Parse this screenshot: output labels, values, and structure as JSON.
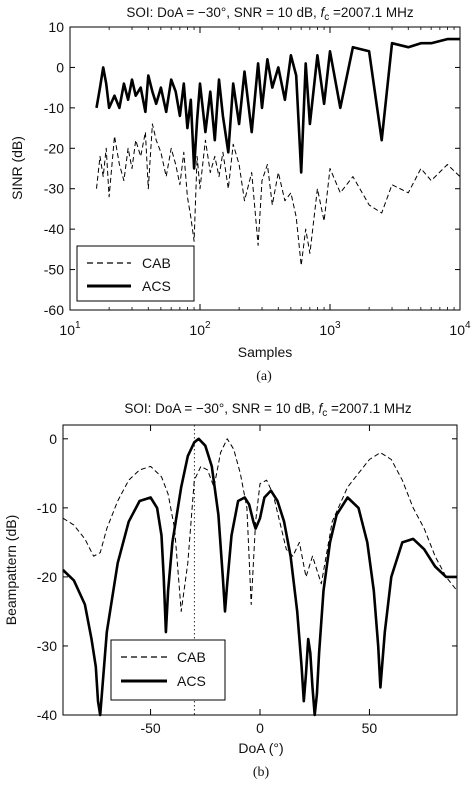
{
  "chart_data": [
    {
      "type": "line",
      "title_prefix": "SOI: DoA = −30°, SNR = 10 dB, ",
      "title_var": "f",
      "title_sub": "c",
      "title_suffix": " =2007.1 MHz",
      "xlabel": "Samples",
      "ylabel": "SINR (dB)",
      "caption": "(a)",
      "xscale": "log",
      "xlim": [
        10,
        10000
      ],
      "ylim": [
        -60,
        10
      ],
      "xtick_values": [
        10,
        100,
        1000,
        10000
      ],
      "xtick_bases": [
        "10",
        "10",
        "10",
        "10"
      ],
      "xtick_exps": [
        "1",
        "2",
        "3",
        "4"
      ],
      "ytick_labels": [
        "10",
        "0",
        "-10",
        "-20",
        "-30",
        "-40",
        "-50",
        "-60"
      ],
      "ytick_values": [
        10,
        0,
        -10,
        -20,
        -30,
        -40,
        -50,
        -60
      ],
      "grid": false,
      "legend_position": "bottom-left",
      "series": [
        {
          "name": "CAB",
          "style": "dashed",
          "x": [
            16,
            17,
            18,
            19,
            20,
            22,
            24,
            26,
            28,
            30,
            32,
            35,
            38,
            40,
            43,
            46,
            50,
            55,
            60,
            65,
            70,
            75,
            80,
            85,
            90,
            95,
            100,
            110,
            120,
            130,
            140,
            150,
            165,
            180,
            200,
            220,
            250,
            280,
            300,
            330,
            360,
            400,
            450,
            500,
            550,
            600,
            650,
            700,
            800,
            900,
            1000,
            1200,
            1500,
            2000,
            2500,
            3000,
            4000,
            5000,
            6000,
            8000,
            10000
          ],
          "y": [
            -30,
            -22,
            -27,
            -20,
            -32,
            -17,
            -24,
            -28,
            -20,
            -25,
            -18,
            -22,
            -16,
            -30,
            -14,
            -18,
            -21,
            -27,
            -20,
            -24,
            -29,
            -21,
            -32,
            -37,
            -43,
            -22,
            -30,
            -18,
            -26,
            -22,
            -27,
            -21,
            -30,
            -19,
            -24,
            -33,
            -26,
            -44,
            -28,
            -24,
            -34,
            -26,
            -33,
            -31,
            -37,
            -49,
            -40,
            -46,
            -30,
            -38,
            -25,
            -31,
            -27,
            -34,
            -36,
            -29,
            -31,
            -25,
            -28,
            -24,
            -27
          ]
        },
        {
          "name": "ACS",
          "style": "solid",
          "x": [
            16,
            17,
            18,
            19,
            20,
            22,
            24,
            26,
            28,
            30,
            32,
            35,
            38,
            40,
            43,
            46,
            50,
            55,
            60,
            65,
            70,
            75,
            80,
            85,
            90,
            95,
            100,
            110,
            120,
            130,
            140,
            150,
            165,
            180,
            200,
            220,
            250,
            280,
            300,
            330,
            360,
            400,
            450,
            500,
            550,
            600,
            650,
            700,
            800,
            900,
            1000,
            1200,
            1500,
            2000,
            2500,
            3000,
            4000,
            5000,
            6000,
            8000,
            10000
          ],
          "y": [
            -10,
            -5,
            0,
            -4,
            -10,
            -7,
            -10,
            -4,
            -8,
            -3,
            -7,
            -5,
            -11,
            -2,
            -6,
            -9,
            -5,
            -11,
            -3,
            -6,
            -12,
            -4,
            -15,
            -8,
            -25,
            -13,
            -4,
            -16,
            -6,
            -18,
            -3,
            -12,
            -21,
            -4,
            -14,
            -1,
            -16,
            1,
            -10,
            2,
            -5,
            0,
            -8,
            3,
            -2,
            -26,
            1,
            -14,
            3,
            -9,
            4,
            -10,
            5,
            4,
            -18,
            6,
            5,
            6,
            6,
            7,
            7
          ]
        }
      ]
    },
    {
      "type": "line",
      "title_prefix": "SOI: DoA = −30°, SNR = 10 dB, ",
      "title_var": "f",
      "title_sub": "c",
      "title_suffix": " =2007.1 MHz",
      "xlabel": "DoA (°)",
      "ylabel": "Beampattern (dB)",
      "caption": "(b)",
      "xscale": "linear",
      "xlim": [
        -90,
        90
      ],
      "ylim": [
        -40,
        2
      ],
      "xtick_labels": [
        "-50",
        "0",
        "50"
      ],
      "xtick_values": [
        -50,
        0,
        50
      ],
      "ytick_labels": [
        "0",
        "-10",
        "-20",
        "-30",
        "-40"
      ],
      "ytick_values": [
        0,
        -10,
        -20,
        -30,
        -40
      ],
      "grid": false,
      "legend_position": "bottom-left",
      "reference_line_x": -30,
      "series": [
        {
          "name": "CAB",
          "style": "dashed",
          "x": [
            -90,
            -85,
            -80,
            -76,
            -73,
            -70,
            -65,
            -60,
            -55,
            -50,
            -45,
            -42,
            -39,
            -36,
            -33,
            -30,
            -27,
            -24,
            -21,
            -18,
            -15,
            -12,
            -9,
            -6,
            -4,
            -2,
            0,
            3,
            6,
            9,
            12,
            15,
            18,
            21,
            24,
            28,
            33,
            40,
            50,
            55,
            60,
            65,
            70,
            75,
            80,
            85,
            90
          ],
          "y": [
            -11.5,
            -12.5,
            -14.5,
            -17,
            -16.5,
            -13,
            -9,
            -6,
            -4.5,
            -4,
            -5.5,
            -8,
            -13,
            -25,
            -18,
            -6,
            -4,
            -4.5,
            -7,
            -2,
            0,
            -1.5,
            -5,
            -10,
            -24,
            -12,
            -6.5,
            -6,
            -8,
            -12,
            -16,
            -17,
            -15,
            -20,
            -17,
            -21,
            -12,
            -7,
            -3,
            -2,
            -3,
            -6,
            -10,
            -13,
            -17,
            -20,
            -22
          ]
        },
        {
          "name": "ACS",
          "style": "solid",
          "x": [
            -90,
            -85,
            -80,
            -77,
            -75,
            -74,
            -73,
            -72,
            -70,
            -65,
            -60,
            -55,
            -50,
            -47,
            -45,
            -44,
            -43,
            -42,
            -40,
            -36,
            -33,
            -30,
            -28,
            -25,
            -22,
            -19,
            -17,
            -16,
            -15,
            -13,
            -10,
            -7,
            -5,
            -3,
            -2,
            0,
            2,
            5,
            8,
            11,
            14,
            17,
            19,
            20,
            21,
            22,
            23,
            24,
            25,
            26,
            27,
            29,
            32,
            35,
            40,
            45,
            49,
            52,
            54,
            55,
            57,
            60,
            65,
            70,
            75,
            80,
            85,
            90
          ],
          "y": [
            -19,
            -20.5,
            -24,
            -29,
            -33,
            -38,
            -40,
            -36,
            -28,
            -18,
            -12,
            -9,
            -8.5,
            -10,
            -14,
            -20,
            -28,
            -22,
            -15,
            -7,
            -2.5,
            -0.5,
            0,
            -1,
            -4,
            -11,
            -20,
            -25,
            -21,
            -14,
            -9,
            -8.5,
            -9.5,
            -12,
            -13,
            -11.5,
            -8.5,
            -7.5,
            -9,
            -12,
            -17,
            -25,
            -33,
            -38,
            -34,
            -29,
            -31,
            -36,
            -40,
            -37,
            -31,
            -22,
            -15,
            -11,
            -8.5,
            -10,
            -15,
            -22,
            -30,
            -36,
            -28,
            -20,
            -15,
            -14.5,
            -16,
            -18.5,
            -20,
            -20
          ]
        }
      ]
    }
  ]
}
